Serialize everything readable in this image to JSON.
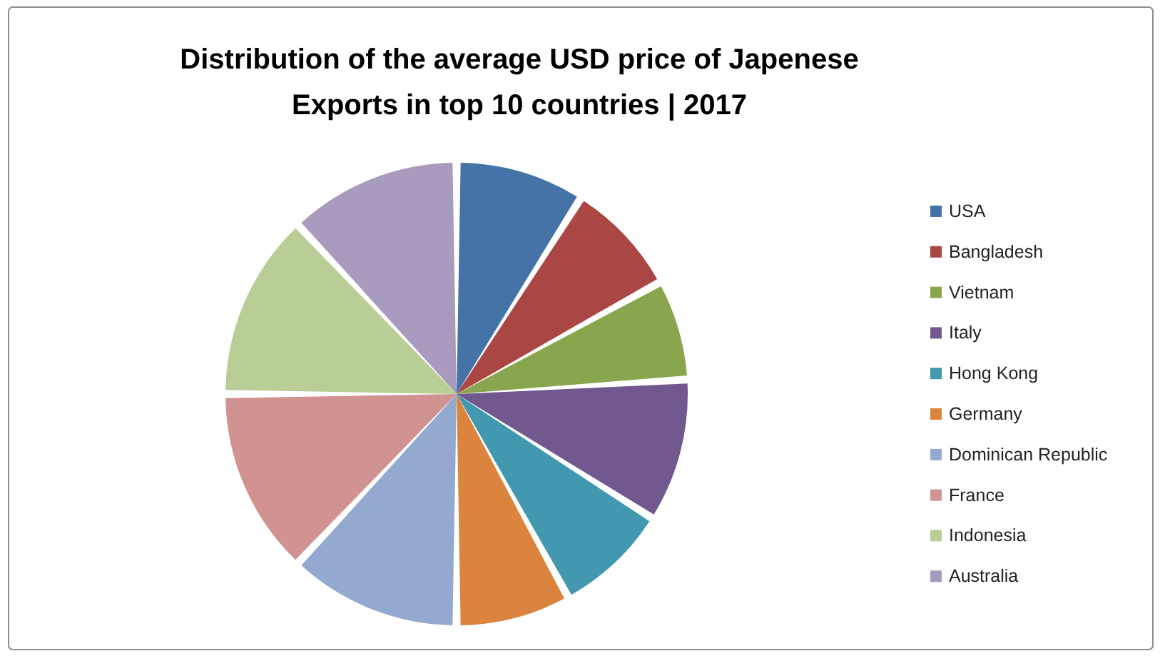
{
  "chart_data": {
    "type": "pie",
    "title": "Distribution of the average USD price of Japenese Exports in top 10 countries | 2017",
    "categories": [
      "USA",
      "Bangladesh",
      "Vietnam",
      "Italy",
      "Hong Kong",
      "Germany",
      "Dominican Republic",
      "France",
      "Indonesia",
      "Australia"
    ],
    "values": [
      9,
      8,
      7,
      10,
      8,
      8,
      12,
      13,
      13,
      12
    ],
    "colors": [
      "#4572a7",
      "#aa4643",
      "#89a54e",
      "#71588f",
      "#4198af",
      "#db843d",
      "#93a9cf",
      "#d19392",
      "#b9cd96",
      "#a99bbd"
    ],
    "legend": "right"
  }
}
